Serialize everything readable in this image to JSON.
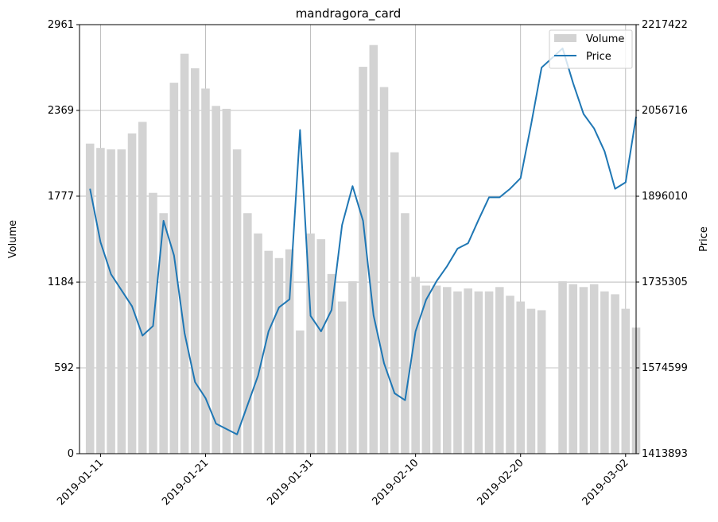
{
  "chart_data": {
    "type": "bar+line",
    "title": "mandragora_card",
    "ylabel_left": "Volume",
    "ylabel_right": "Price",
    "grid": true,
    "legend_position": "top-right",
    "x_start": "2019-01-09",
    "x_end": "2019-03-03",
    "x_tick_labels": [
      "2019-01-11",
      "2019-01-21",
      "2019-01-31",
      "2019-02-10",
      "2019-02-20",
      "2019-03-02"
    ],
    "ylim_left": [
      0,
      2961
    ],
    "yticks_left": [
      "0",
      "592",
      "1184",
      "1777",
      "2369",
      "2961"
    ],
    "ylim_right": [
      1413893,
      2217422
    ],
    "yticks_right": [
      "1413893",
      "1574599",
      "1735305",
      "1896010",
      "2056716",
      "2217422"
    ],
    "series": [
      {
        "name": "Volume",
        "kind": "bar",
        "color": "#d3d3d3",
        "points": [
          [
            "2019-01-10",
            2140
          ],
          [
            "2019-01-11",
            2110
          ],
          [
            "2019-01-12",
            2100
          ],
          [
            "2019-01-13",
            2100
          ],
          [
            "2019-01-14",
            2210
          ],
          [
            "2019-01-15",
            2290
          ],
          [
            "2019-01-16",
            1800
          ],
          [
            "2019-01-17",
            1660
          ],
          [
            "2019-01-18",
            2560
          ],
          [
            "2019-01-19",
            2760
          ],
          [
            "2019-01-20",
            2660
          ],
          [
            "2019-01-21",
            2520
          ],
          [
            "2019-01-22",
            2400
          ],
          [
            "2019-01-23",
            2380
          ],
          [
            "2019-01-24",
            2100
          ],
          [
            "2019-01-25",
            1660
          ],
          [
            "2019-01-26",
            1520
          ],
          [
            "2019-01-27",
            1400
          ],
          [
            "2019-01-28",
            1350
          ],
          [
            "2019-01-29",
            1410
          ],
          [
            "2019-01-30",
            850
          ],
          [
            "2019-01-31",
            1520
          ],
          [
            "2019-02-01",
            1480
          ],
          [
            "2019-02-02",
            1240
          ],
          [
            "2019-02-03",
            1050
          ],
          [
            "2019-02-04",
            1190
          ],
          [
            "2019-02-05",
            2670
          ],
          [
            "2019-02-06",
            2820
          ],
          [
            "2019-02-07",
            2530
          ],
          [
            "2019-02-08",
            2080
          ],
          [
            "2019-02-09",
            1660
          ],
          [
            "2019-02-10",
            1220
          ],
          [
            "2019-02-11",
            1160
          ],
          [
            "2019-02-12",
            1160
          ],
          [
            "2019-02-13",
            1150
          ],
          [
            "2019-02-14",
            1120
          ],
          [
            "2019-02-15",
            1140
          ],
          [
            "2019-02-16",
            1120
          ],
          [
            "2019-02-17",
            1120
          ],
          [
            "2019-02-18",
            1150
          ],
          [
            "2019-02-19",
            1090
          ],
          [
            "2019-02-20",
            1050
          ],
          [
            "2019-02-21",
            1000
          ],
          [
            "2019-02-22",
            990
          ],
          [
            "2019-02-24",
            1190
          ],
          [
            "2019-02-25",
            1170
          ],
          [
            "2019-02-26",
            1150
          ],
          [
            "2019-02-27",
            1170
          ],
          [
            "2019-02-28",
            1120
          ],
          [
            "2019-03-01",
            1100
          ],
          [
            "2019-03-02",
            1000
          ],
          [
            "2019-03-03",
            870
          ]
        ]
      },
      {
        "name": "Price",
        "kind": "line",
        "color": "#1f77b4",
        "points": [
          [
            "2019-01-10",
            1910000
          ],
          [
            "2019-01-11",
            1810000
          ],
          [
            "2019-01-12",
            1750000
          ],
          [
            "2019-01-13",
            1720000
          ],
          [
            "2019-01-14",
            1690000
          ],
          [
            "2019-01-15",
            1635000
          ],
          [
            "2019-01-16",
            1653000
          ],
          [
            "2019-01-17",
            1850000
          ],
          [
            "2019-01-18",
            1785000
          ],
          [
            "2019-01-19",
            1640000
          ],
          [
            "2019-01-20",
            1548000
          ],
          [
            "2019-01-21",
            1518000
          ],
          [
            "2019-01-22",
            1470000
          ],
          [
            "2019-01-23",
            1460000
          ],
          [
            "2019-01-24",
            1450000
          ],
          [
            "2019-01-25",
            1505000
          ],
          [
            "2019-01-26",
            1560000
          ],
          [
            "2019-01-27",
            1643000
          ],
          [
            "2019-01-28",
            1688000
          ],
          [
            "2019-01-29",
            1703000
          ],
          [
            "2019-01-30",
            2020000
          ],
          [
            "2019-01-31",
            1672000
          ],
          [
            "2019-02-01",
            1643000
          ],
          [
            "2019-02-02",
            1683000
          ],
          [
            "2019-02-03",
            1842000
          ],
          [
            "2019-02-04",
            1915000
          ],
          [
            "2019-02-05",
            1850000
          ],
          [
            "2019-02-06",
            1673000
          ],
          [
            "2019-02-07",
            1583000
          ],
          [
            "2019-02-08",
            1527000
          ],
          [
            "2019-02-09",
            1514000
          ],
          [
            "2019-02-10",
            1643000
          ],
          [
            "2019-02-11",
            1702000
          ],
          [
            "2019-02-12",
            1737000
          ],
          [
            "2019-02-13",
            1765000
          ],
          [
            "2019-02-14",
            1798000
          ],
          [
            "2019-02-15",
            1808000
          ],
          [
            "2019-02-16",
            1852000
          ],
          [
            "2019-02-17",
            1894000
          ],
          [
            "2019-02-18",
            1894000
          ],
          [
            "2019-02-19",
            1910000
          ],
          [
            "2019-02-20",
            1930000
          ],
          [
            "2019-02-21",
            2030000
          ],
          [
            "2019-02-22",
            2137000
          ],
          [
            "2019-02-24",
            2173000
          ],
          [
            "2019-02-25",
            2108000
          ],
          [
            "2019-02-26",
            2050000
          ],
          [
            "2019-02-27",
            2023000
          ],
          [
            "2019-02-28",
            1980000
          ],
          [
            "2019-03-01",
            1910000
          ],
          [
            "2019-03-02",
            1922000
          ],
          [
            "2019-03-03",
            2045000
          ]
        ]
      }
    ]
  }
}
